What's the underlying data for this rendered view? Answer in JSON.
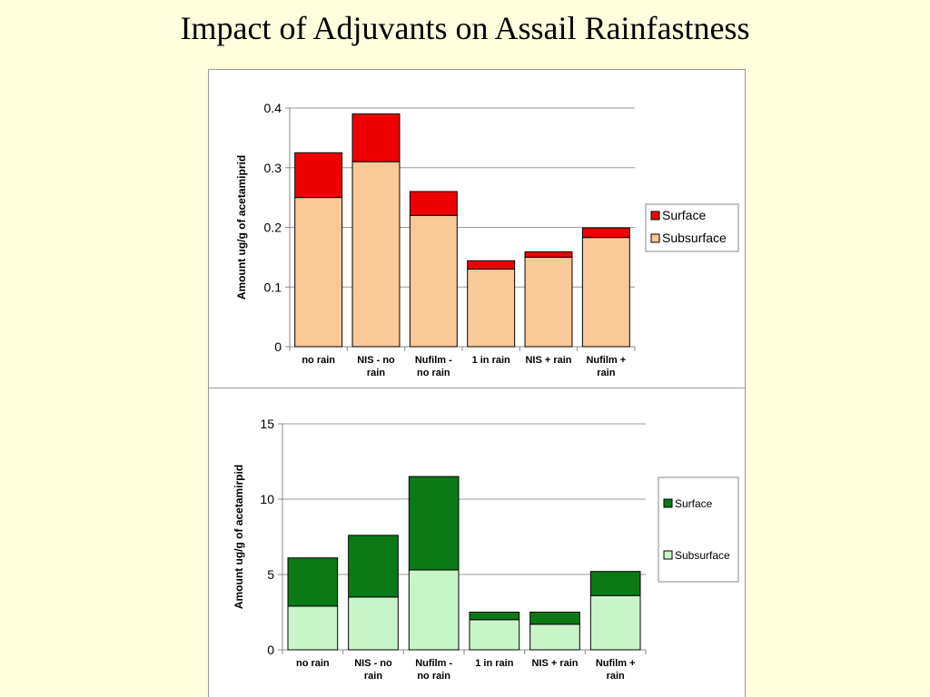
{
  "title": "Impact of Adjuvants on Assail Rainfastness",
  "colors": {
    "background": "#ffffdd",
    "chart1_surface": "#ee0000",
    "chart1_subsurface": "#fbc898",
    "chart2_surface": "#0b7a16",
    "chart2_subsurface": "#c8f5c8"
  },
  "chart_data": [
    {
      "type": "bar",
      "stacked": true,
      "categories": [
        [
          "no rain"
        ],
        [
          "NIS - no",
          "rain"
        ],
        [
          "Nufilm -",
          "no rain"
        ],
        [
          "1 in rain"
        ],
        [
          "NIS + rain"
        ],
        [
          "Nufilm +",
          "rain"
        ]
      ],
      "series": [
        {
          "name": "Subsurface",
          "values": [
            0.25,
            0.31,
            0.22,
            0.13,
            0.15,
            0.183
          ]
        },
        {
          "name": "Surface",
          "values": [
            0.075,
            0.08,
            0.04,
            0.014,
            0.009,
            0.016
          ]
        }
      ],
      "legend": [
        "Surface",
        "Subsurface"
      ],
      "ylabel": "Amount ug/g of acetamiprid",
      "ylim": [
        0,
        0.4
      ],
      "yticks": [
        "0",
        "0.1",
        "0.2",
        "0.3",
        "0.4"
      ],
      "grid": true,
      "legend_position": "right"
    },
    {
      "type": "bar",
      "stacked": true,
      "categories": [
        [
          "no rain"
        ],
        [
          "NIS - no",
          "rain"
        ],
        [
          "Nufilm -",
          "no rain"
        ],
        [
          "1 in rain"
        ],
        [
          "NIS + rain"
        ],
        [
          "Nufilm +",
          "rain"
        ]
      ],
      "series": [
        {
          "name": "Subsurface",
          "values": [
            2.9,
            3.5,
            5.3,
            2.0,
            1.7,
            3.6
          ]
        },
        {
          "name": "Surface",
          "values": [
            3.2,
            4.1,
            6.2,
            0.5,
            0.8,
            1.6
          ]
        }
      ],
      "legend": [
        "Surface",
        "Subsurface"
      ],
      "ylabel": "Amount ug/g of acetamirpid",
      "ylim": [
        0,
        15
      ],
      "yticks": [
        "0",
        "5",
        "10",
        "15"
      ],
      "grid": true,
      "legend_position": "right"
    }
  ]
}
